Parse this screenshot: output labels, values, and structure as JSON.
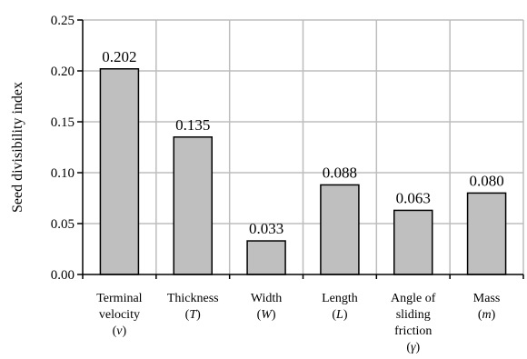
{
  "chart_data": {
    "type": "bar",
    "ylabel": "Seed divisibility index",
    "xlabel": "",
    "ylim": [
      0,
      0.25
    ],
    "yticks": [
      "0.00",
      "0.05",
      "0.10",
      "0.15",
      "0.20",
      "0.25"
    ],
    "grid": true,
    "categories": [
      {
        "lines": [
          {
            "text": "Terminal"
          },
          {
            "text": "velocity"
          },
          {
            "text": "(",
            "var": "v",
            "close": ")"
          }
        ]
      },
      {
        "lines": [
          {
            "text": "Thickness"
          },
          {
            "text": "(",
            "var": "T",
            "close": ")"
          }
        ]
      },
      {
        "lines": [
          {
            "text": "Width"
          },
          {
            "text": "(",
            "var": "W",
            "close": ")"
          }
        ]
      },
      {
        "lines": [
          {
            "text": "Length"
          },
          {
            "text": "(",
            "var": "L",
            "close": ")"
          }
        ]
      },
      {
        "lines": [
          {
            "text": "Angle of"
          },
          {
            "text": "sliding"
          },
          {
            "text": "friction"
          },
          {
            "text": "(",
            "var": "γ",
            "close": ")"
          }
        ]
      },
      {
        "lines": [
          {
            "text": "Mass"
          },
          {
            "text": "(",
            "var": "m",
            "close": ")"
          }
        ]
      }
    ],
    "values": [
      0.202,
      0.135,
      0.033,
      0.088,
      0.063,
      0.08
    ],
    "data_labels": [
      "0.202",
      "0.135",
      "0.033",
      "0.088",
      "0.063",
      "0.080"
    ],
    "bar_color": "#bfbfbf",
    "bar_edge_color": "#000000",
    "grid_color": "#bdbdbd"
  }
}
